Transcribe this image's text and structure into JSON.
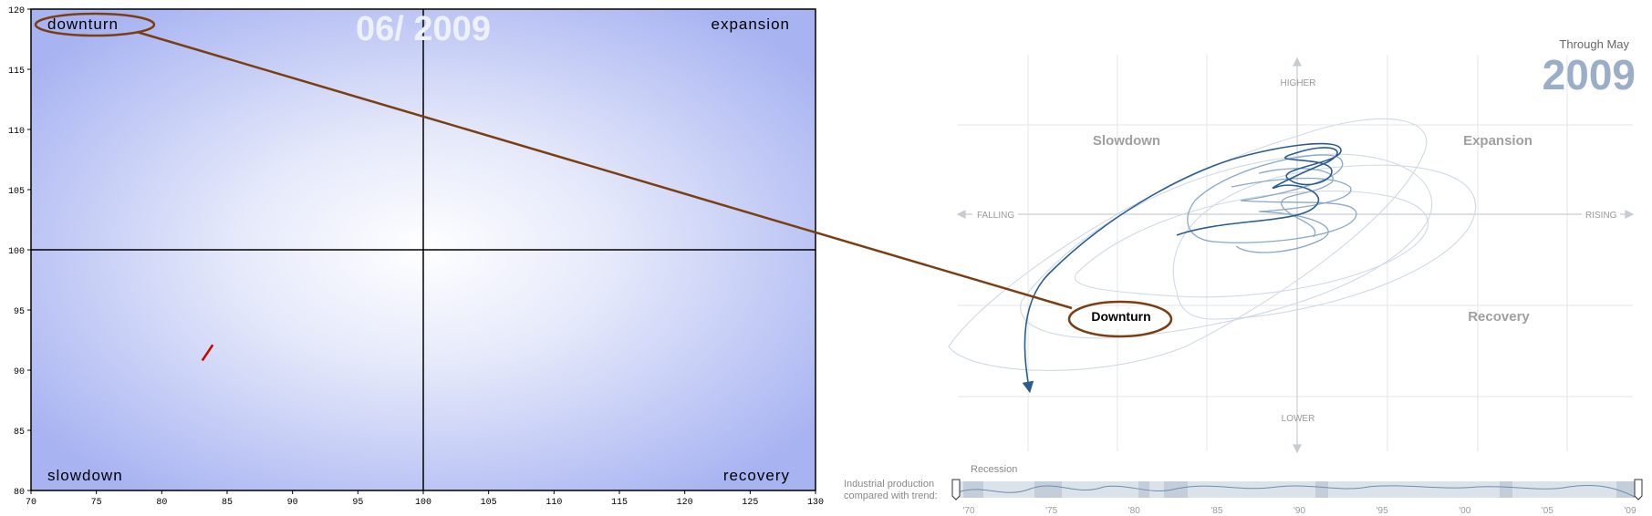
{
  "chart_data": [
    {
      "type": "line",
      "title": "06/ 2009",
      "x_ticks": [
        70,
        75,
        80,
        85,
        90,
        95,
        100,
        105,
        110,
        115,
        120,
        125,
        130
      ],
      "y_ticks": [
        80,
        85,
        90,
        95,
        100,
        105,
        110,
        115,
        120
      ],
      "xlim": [
        70,
        130
      ],
      "ylim": [
        80,
        120
      ],
      "reference_lines": {
        "x": 100,
        "y": 100
      },
      "quadrant_labels": {
        "top_left": "downturn",
        "top_right": "expansion",
        "bottom_left": "slowdown",
        "bottom_right": "recovery"
      },
      "series": [
        {
          "color": "#cc0000",
          "x": [
            83.1,
            83.9
          ],
          "y": [
            90.8,
            92.1
          ]
        }
      ]
    },
    {
      "type": "line",
      "header": "Through May",
      "year": "2009",
      "axis_labels": {
        "up": "HIGHER",
        "down": "LOWER",
        "left": "FALLING",
        "right": "RISING"
      },
      "quadrant_labels": {
        "top_left": "Slowdown",
        "top_right": "Expansion",
        "bottom_left": "Downturn",
        "bottom_right": "Recovery"
      },
      "timeline": {
        "label": "Recession",
        "caption_line1": "Industrial production",
        "caption_line2": "compared with trend:",
        "year_ticks": [
          "'70",
          "'75",
          "'80",
          "'85",
          "'90",
          "'95",
          "'00",
          "'05",
          "'09"
        ]
      }
    }
  ],
  "annotation": {
    "color": "#7a3e12"
  }
}
